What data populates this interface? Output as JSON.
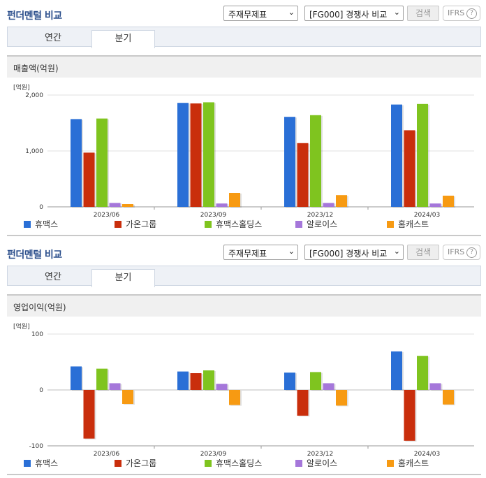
{
  "colors": {
    "휴맥스": "#2a6fd6",
    "가온그룹": "#c92e0c",
    "휴맥스홀딩스": "#7fc41f",
    "알로이스": "#a577da",
    "홈캐스트": "#f79a12"
  },
  "panels": [
    {
      "title": "펀더멘털 비교",
      "select_statement": "주재무제표",
      "select_compare": "[FG000] 경쟁사 비교",
      "search_label": "검색",
      "ifrs_label": "IFRS",
      "help_glyph": "?",
      "tabs": [
        "연간",
        "분기"
      ],
      "metric_title": "매출액(억원)",
      "unit_label": "[억원]"
    },
    {
      "title": "펀더멘털 비교",
      "select_statement": "주재무제표",
      "select_compare": "[FG000] 경쟁사 비교",
      "search_label": "검색",
      "ifrs_label": "IFRS",
      "help_glyph": "?",
      "tabs": [
        "연간",
        "분기"
      ],
      "metric_title": "영업이익(억원)",
      "unit_label": "[억원]"
    }
  ],
  "chart_data": [
    {
      "type": "bar",
      "title": "매출액(억원)",
      "ylabel": "[억원]",
      "categories": [
        "2023/06",
        "2023/09",
        "2023/12",
        "2024/03"
      ],
      "ylim": [
        0,
        2000
      ],
      "yticks": [
        0,
        1000,
        2000
      ],
      "ytick_labels": [
        "0",
        "1,000",
        "2,000"
      ],
      "grid": true,
      "legend": "bottom",
      "series": [
        {
          "name": "휴맥스",
          "values": [
            1570,
            1860,
            1610,
            1830
          ]
        },
        {
          "name": "가온그룹",
          "values": [
            970,
            1850,
            1140,
            1370
          ]
        },
        {
          "name": "휴맥스홀딩스",
          "values": [
            1580,
            1870,
            1640,
            1840
          ]
        },
        {
          "name": "알로이스",
          "values": [
            70,
            60,
            70,
            60
          ]
        },
        {
          "name": "홈캐스트",
          "values": [
            50,
            250,
            210,
            200
          ]
        }
      ]
    },
    {
      "type": "bar",
      "title": "영업이익(억원)",
      "ylabel": "[억원]",
      "categories": [
        "2023/06",
        "2023/09",
        "2023/12",
        "2024/03"
      ],
      "ylim": [
        -100,
        100
      ],
      "yticks": [
        -100,
        0,
        100
      ],
      "ytick_labels": [
        "-100",
        "0",
        "100"
      ],
      "grid": true,
      "legend": "bottom",
      "series": [
        {
          "name": "휴맥스",
          "values": [
            42,
            33,
            31,
            69
          ]
        },
        {
          "name": "가온그룹",
          "values": [
            -87,
            30,
            -46,
            -91
          ]
        },
        {
          "name": "휴맥스홀딩스",
          "values": [
            38,
            35,
            32,
            61
          ]
        },
        {
          "name": "알로이스",
          "values": [
            12,
            11,
            12,
            12
          ]
        },
        {
          "name": "홈캐스트",
          "values": [
            -25,
            -27,
            -28,
            -26
          ]
        }
      ]
    }
  ]
}
